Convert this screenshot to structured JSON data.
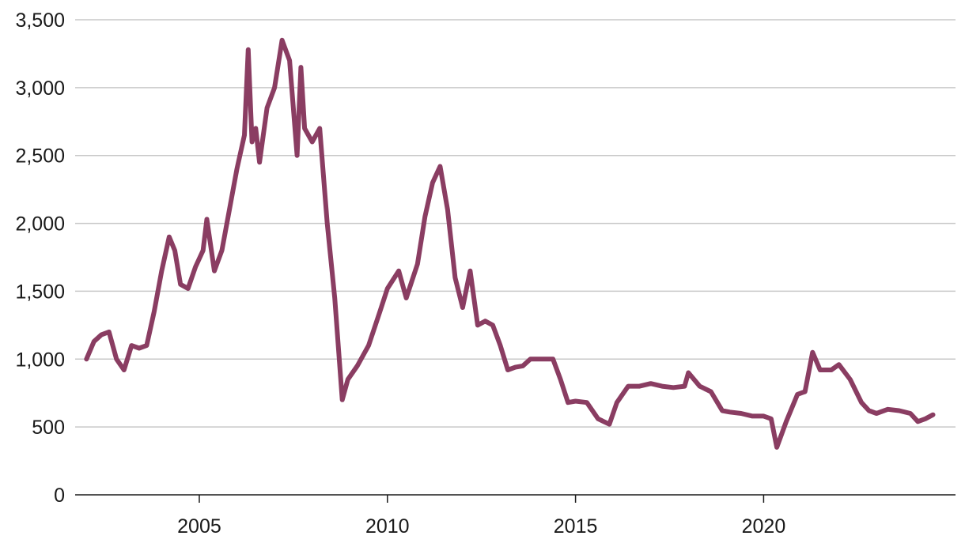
{
  "chart_data": {
    "type": "line",
    "title": "",
    "xlabel": "",
    "ylabel": "",
    "x_ticks": [
      "2005",
      "2010",
      "2015",
      "2020"
    ],
    "y_ticks": [
      "0",
      "500",
      "1,000",
      "1,500",
      "2,000",
      "2,500",
      "3,000",
      "3,500"
    ],
    "xlim": [
      2001.7,
      2025.1
    ],
    "ylim": [
      0,
      3500
    ],
    "grid": "horizontal",
    "legend": "none",
    "line_color": "#8a3d62",
    "series": [
      {
        "x": [
          2002.0,
          2002.2,
          2002.4,
          2002.6,
          2002.8,
          2003.0,
          2003.2,
          2003.4,
          2003.6,
          2003.8,
          2004.0,
          2004.2,
          2004.35,
          2004.5,
          2004.7,
          2004.9,
          2005.1,
          2005.2,
          2005.4,
          2005.6,
          2005.8,
          2006.0,
          2006.2,
          2006.3,
          2006.4,
          2006.5,
          2006.6,
          2006.8,
          2007.0,
          2007.2,
          2007.4,
          2007.6,
          2007.7,
          2007.8,
          2008.0,
          2008.2,
          2008.4,
          2008.6,
          2008.8,
          2008.95,
          2009.2,
          2009.5,
          2009.8,
          2010.0,
          2010.3,
          2010.5,
          2010.8,
          2011.0,
          2011.2,
          2011.4,
          2011.6,
          2011.8,
          2012.0,
          2012.2,
          2012.4,
          2012.6,
          2012.8,
          2013.0,
          2013.2,
          2013.4,
          2013.6,
          2013.8,
          2014.0,
          2014.2,
          2014.4,
          2014.6,
          2014.8,
          2015.0,
          2015.3,
          2015.6,
          2015.9,
          2016.1,
          2016.4,
          2016.7,
          2017.0,
          2017.3,
          2017.6,
          2017.9,
          2018.0,
          2018.3,
          2018.6,
          2018.9,
          2019.1,
          2019.4,
          2019.7,
          2020.0,
          2020.2,
          2020.35,
          2020.6,
          2020.9,
          2021.1,
          2021.3,
          2021.5,
          2021.8,
          2022.0,
          2022.3,
          2022.6,
          2022.8,
          2023.0,
          2023.3,
          2023.6,
          2023.9,
          2024.1,
          2024.3,
          2024.5
        ],
        "values": [
          1000,
          1130,
          1180,
          1200,
          1000,
          920,
          1100,
          1080,
          1100,
          1350,
          1650,
          1900,
          1800,
          1550,
          1520,
          1680,
          1800,
          2030,
          1650,
          1800,
          2100,
          2400,
          2650,
          3280,
          2600,
          2700,
          2450,
          2850,
          3000,
          3350,
          3200,
          2500,
          3150,
          2700,
          2600,
          2700,
          2000,
          1450,
          700,
          850,
          950,
          1100,
          1350,
          1520,
          1650,
          1450,
          1700,
          2050,
          2300,
          2420,
          2100,
          1600,
          1380,
          1650,
          1250,
          1280,
          1250,
          1100,
          920,
          940,
          950,
          1000,
          1000,
          1000,
          1000,
          850,
          680,
          690,
          680,
          560,
          520,
          680,
          800,
          800,
          820,
          800,
          790,
          800,
          900,
          800,
          760,
          620,
          610,
          600,
          580,
          580,
          560,
          350,
          540,
          740,
          760,
          1050,
          920,
          920,
          960,
          850,
          680,
          620,
          600,
          630,
          620,
          600,
          540,
          560,
          590
        ]
      }
    ]
  }
}
